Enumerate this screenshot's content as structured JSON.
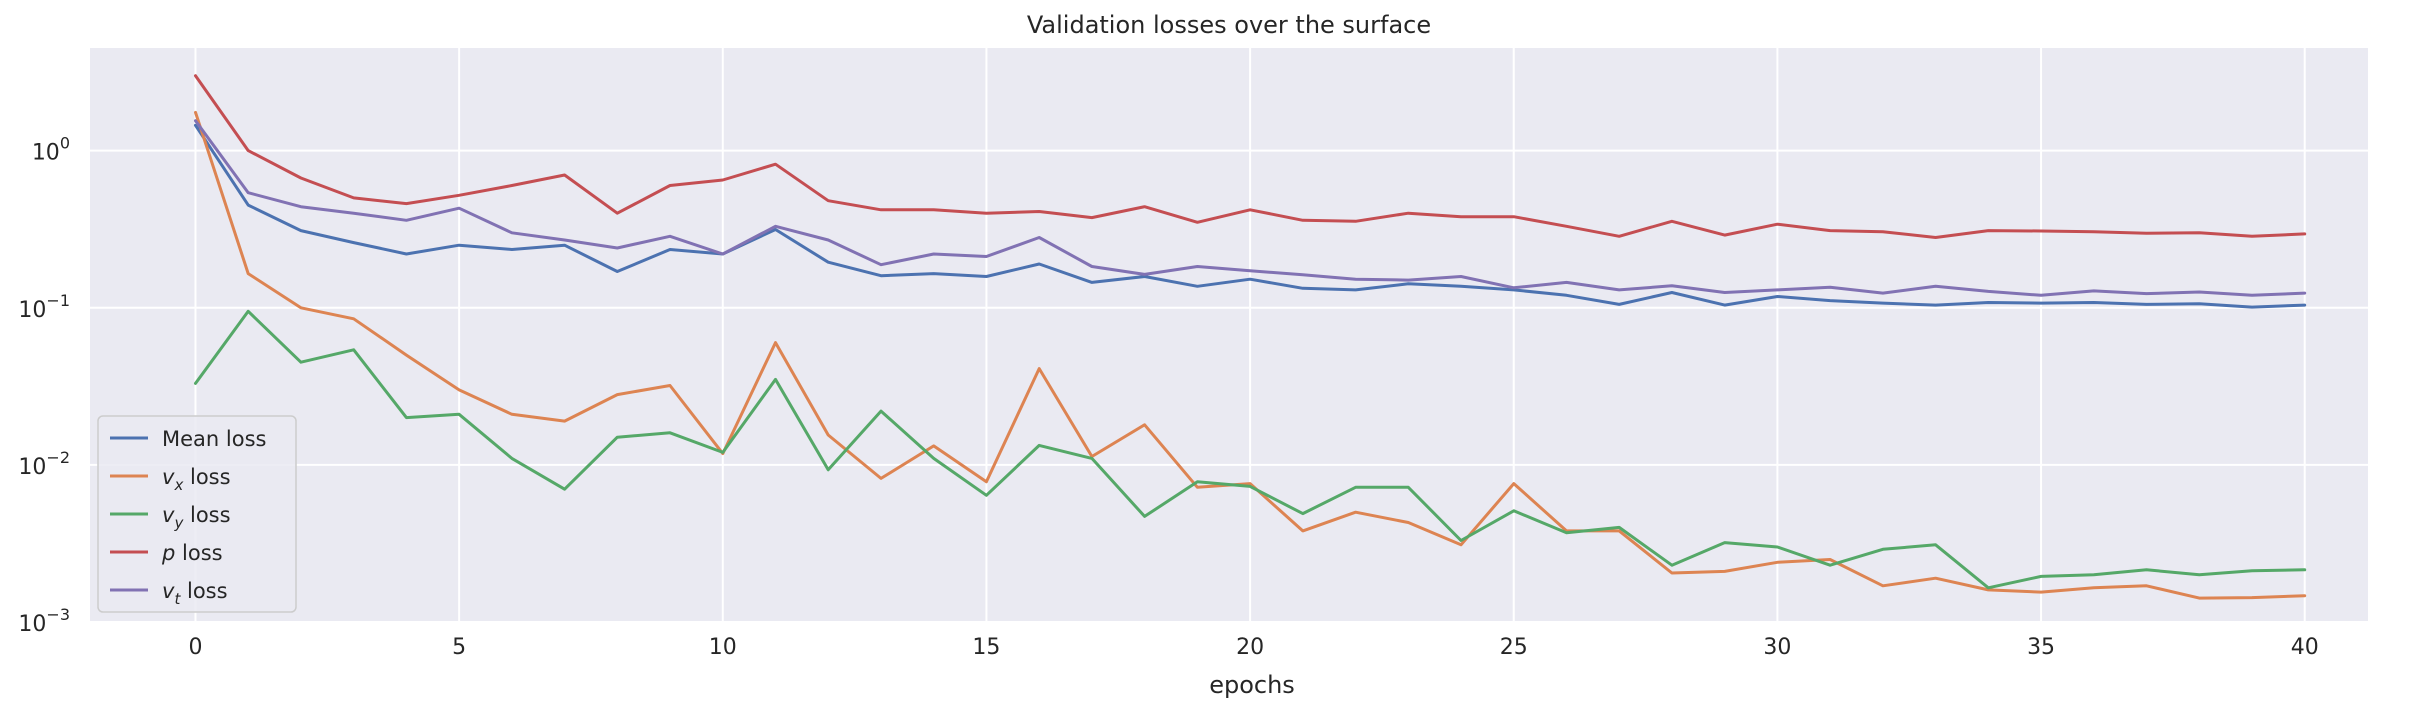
{
  "chart_data": {
    "type": "line",
    "title": "Validation losses over the surface",
    "xlabel": "epochs",
    "ylabel": "",
    "xlim": [
      -2,
      41.2
    ],
    "ylim": [
      0.001,
      4.5
    ],
    "yscale": "log",
    "x_ticks": [
      0,
      5,
      10,
      15,
      20,
      25,
      30,
      35,
      40
    ],
    "y_ticks": [
      {
        "base": "10",
        "exp": "0",
        "value": 1
      },
      {
        "base": "10",
        "exp": "−1",
        "value": 0.1
      },
      {
        "base": "10",
        "exp": "−2",
        "value": 0.01
      },
      {
        "base": "10",
        "exp": "−3",
        "value": 0.001
      }
    ],
    "grid": true,
    "legend_position": "lower-left",
    "x": [
      0,
      1,
      2,
      3,
      4,
      5,
      6,
      7,
      8,
      9,
      10,
      11,
      12,
      13,
      14,
      15,
      16,
      17,
      18,
      19,
      20,
      21,
      22,
      23,
      24,
      25,
      26,
      27,
      28,
      29,
      30,
      31,
      32,
      33,
      34,
      35,
      36,
      37,
      38,
      39,
      40
    ],
    "series": [
      {
        "key": "mean",
        "legend": [
          {
            "t": "Mean loss",
            "i": false
          }
        ],
        "color": "#4c72b0",
        "values": [
          1.45,
          0.45,
          0.31,
          0.26,
          0.22,
          0.25,
          0.235,
          0.25,
          0.17,
          0.235,
          0.22,
          0.315,
          0.195,
          0.16,
          0.165,
          0.158,
          0.19,
          0.145,
          0.158,
          0.137,
          0.152,
          0.133,
          0.13,
          0.142,
          0.137,
          0.13,
          0.12,
          0.105,
          0.125,
          0.104,
          0.118,
          0.111,
          0.107,
          0.104,
          0.108,
          0.107,
          0.108,
          0.105,
          0.106,
          0.101,
          0.104
        ]
      },
      {
        "key": "vx",
        "legend": [
          {
            "t": "v",
            "i": true
          },
          {
            "t": "x",
            "i": true,
            "sub": true
          },
          {
            "t": " loss",
            "i": false
          }
        ],
        "color": "#dd8452",
        "values": [
          1.75,
          0.165,
          0.1,
          0.085,
          0.05,
          0.03,
          0.021,
          0.019,
          0.028,
          0.032,
          0.0118,
          0.06,
          0.0155,
          0.0082,
          0.0132,
          0.0078,
          0.041,
          0.0113,
          0.018,
          0.0072,
          0.0076,
          0.0038,
          0.005,
          0.0043,
          0.0031,
          0.0076,
          0.0038,
          0.0038,
          0.00205,
          0.0021,
          0.0024,
          0.0025,
          0.0017,
          0.0019,
          0.0016,
          0.00155,
          0.00165,
          0.0017,
          0.00142,
          0.00143,
          0.00147
        ]
      },
      {
        "key": "vy",
        "legend": [
          {
            "t": "v",
            "i": true
          },
          {
            "t": "y",
            "i": true,
            "sub": true
          },
          {
            "t": " loss",
            "i": false
          }
        ],
        "color": "#55a868",
        "values": [
          0.033,
          0.095,
          0.045,
          0.054,
          0.02,
          0.021,
          0.011,
          0.007,
          0.015,
          0.016,
          0.012,
          0.035,
          0.0093,
          0.022,
          0.011,
          0.0064,
          0.0133,
          0.011,
          0.0047,
          0.0078,
          0.0073,
          0.0049,
          0.0072,
          0.0072,
          0.0033,
          0.0051,
          0.0037,
          0.004,
          0.0023,
          0.0032,
          0.003,
          0.0023,
          0.0029,
          0.0031,
          0.00165,
          0.00195,
          0.002,
          0.00215,
          0.002,
          0.00212,
          0.00215
        ]
      },
      {
        "key": "p",
        "legend": [
          {
            "t": "p",
            "i": true
          },
          {
            "t": " loss",
            "i": false
          }
        ],
        "color": "#c44e52",
        "values": [
          3.0,
          1.0,
          0.67,
          0.5,
          0.46,
          0.52,
          0.6,
          0.7,
          0.4,
          0.6,
          0.65,
          0.82,
          0.48,
          0.42,
          0.42,
          0.4,
          0.41,
          0.375,
          0.44,
          0.35,
          0.42,
          0.36,
          0.355,
          0.4,
          0.38,
          0.38,
          0.33,
          0.285,
          0.355,
          0.29,
          0.34,
          0.31,
          0.305,
          0.28,
          0.31,
          0.308,
          0.305,
          0.298,
          0.3,
          0.285,
          0.295
        ]
      },
      {
        "key": "vt",
        "legend": [
          {
            "t": "v",
            "i": true
          },
          {
            "t": "t",
            "i": true,
            "sub": true
          },
          {
            "t": " loss",
            "i": false
          }
        ],
        "color": "#8172b3",
        "values": [
          1.55,
          0.54,
          0.44,
          0.4,
          0.36,
          0.43,
          0.3,
          0.27,
          0.24,
          0.285,
          0.22,
          0.33,
          0.27,
          0.188,
          0.22,
          0.212,
          0.28,
          0.183,
          0.163,
          0.183,
          0.172,
          0.162,
          0.152,
          0.15,
          0.158,
          0.134,
          0.145,
          0.13,
          0.138,
          0.125,
          0.13,
          0.135,
          0.124,
          0.137,
          0.127,
          0.12,
          0.128,
          0.123,
          0.126,
          0.12,
          0.124
        ]
      }
    ]
  }
}
